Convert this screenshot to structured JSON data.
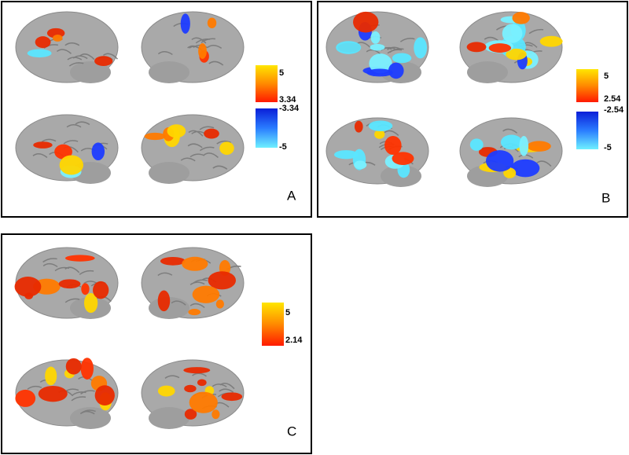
{
  "panels": [
    {
      "label": "A",
      "colorbar": {
        "positive": [
          "5",
          "3.34"
        ],
        "negative": [
          "-3.34",
          "-5"
        ]
      }
    },
    {
      "label": "B",
      "colorbar": {
        "positive": [
          "5",
          "2.54"
        ],
        "negative": [
          "-2.54",
          "-5"
        ]
      }
    },
    {
      "label": "C",
      "colorbar": {
        "positive": [
          "5",
          "2.14"
        ]
      }
    }
  ]
}
